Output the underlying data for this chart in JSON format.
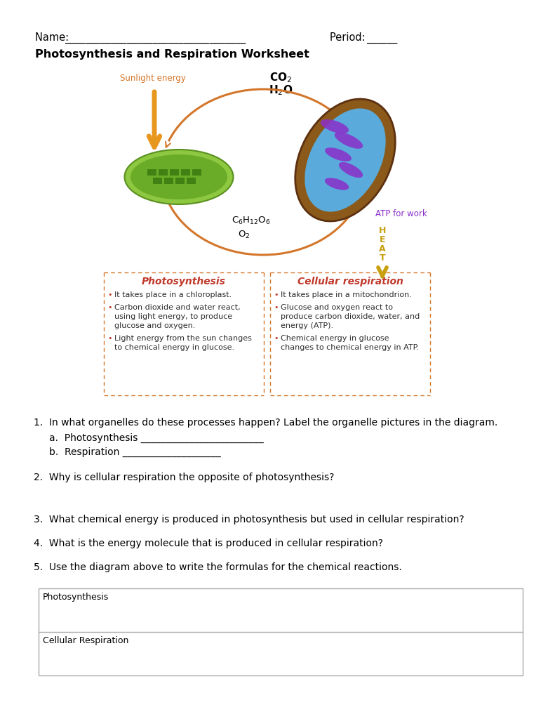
{
  "title": "Photosynthesis and Respiration Worksheet",
  "name_label": "Name: ",
  "period_label": "Period: ",
  "name_underline": "___________________________________",
  "period_underline": "______",
  "sunlight_label": "Sunlight energy",
  "photo_title": "Photosynthesis",
  "cell_resp_title": "Cellular respiration",
  "atp_label": "ATP for work",
  "heat_chars": [
    "H",
    "E",
    "A",
    "T"
  ],
  "photo_bullets_lines": [
    [
      "It takes place in a chloroplast."
    ],
    [
      "Carbon dioxide and water react,",
      "using light energy, to produce",
      "glucose and oxygen."
    ],
    [
      "Light energy from the sun changes",
      "to chemical energy in glucose."
    ]
  ],
  "resp_bullets_lines": [
    [
      "It takes place in a mitochondrion."
    ],
    [
      "Glucose and oxygen react to",
      "produce carbon dioxide, water, and",
      "energy (ATP)."
    ],
    [
      "Chemical energy in glucose",
      "changes to chemical energy in ATP."
    ]
  ],
  "q1": "1.  In what organelles do these processes happen? Label the organelle pictures in the diagram.",
  "q1a": "a.  Photosynthesis _________________________",
  "q1b": "b.  Respiration ____________________",
  "q2": "2.  Why is cellular respiration the opposite of photosynthesis?",
  "q3": "3.  What chemical energy is produced in photosynthesis but used in cellular respiration?",
  "q4": "4.  What is the energy molecule that is produced in cellular respiration?",
  "q5": "5.  Use the diagram above to write the formulas for the chemical reactions.",
  "table_row1": "Photosynthesis",
  "table_row2": "Cellular Respiration",
  "orange": "#D4762A",
  "red": "#C0392B",
  "dark_text": "#2C2C2C",
  "bullet_red": "#C0392B",
  "sunlight_orange": "#E8971E",
  "atp_purple": "#8B2FC9",
  "heat_gold": "#C8A010",
  "chloro_outer": "#8DC840",
  "chloro_inner": "#6AAB28",
  "chloro_dark": "#3A7A10",
  "mito_brown": "#8B5A1A",
  "mito_blue": "#5AABDC",
  "mito_purple": "#8B2FC9",
  "dashed_color": "#D4762A",
  "box_border": "#AAAAAA"
}
